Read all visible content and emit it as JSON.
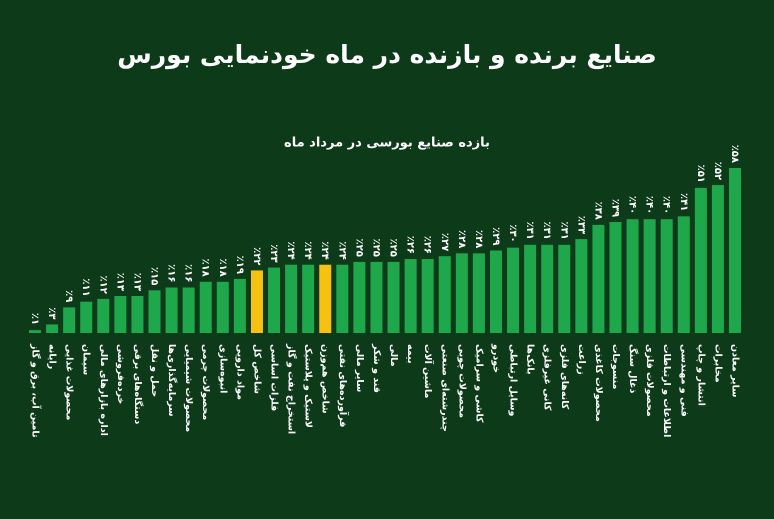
{
  "chart_data": {
    "type": "bar",
    "title": "صنایع برنده و بازنده در ماه خودنمایی بورس",
    "subtitle": "بازده صنایع بورسی در مرداد ماه",
    "categories": [
      "تامین آب، برق و گاز",
      "رایانه",
      "محصولات غذایی",
      "سیمان",
      "اداره بازارهای مالی",
      "خرده‌فروشی",
      "دستگاه‌های برقی",
      "حمل و نقل",
      "سرمایه‌گذاری‌ها",
      "محصولات شیمیایی",
      "محصولات چرمی",
      "انبوه‌سازی",
      "مواد دارویی",
      "شاخص کل",
      "فلزات اساسی",
      "استخراج نفت و گاز",
      "لاستیک و پلاستیک",
      "شاخص هم‌وزن",
      "فرآورده‌های نفتی",
      "سایر مالی",
      "قند و شکر",
      "مالی",
      "بیمه",
      "ماشین آلات",
      "چندرشته‌ای صنعتی",
      "محصولات چوبی",
      "کاشی و سرامیک",
      "خودرو",
      "وسایل ارتباطی",
      "بانک‌ها",
      "کانی غیرفلزی",
      "کانه‌های فلزی",
      "زراعت",
      "محصولات کاغذی",
      "منسوجات",
      "ذغال سنگ",
      "محصولات فلزی",
      "اطلاعات و ارتباطات",
      "فنی و مهندسی",
      "انتشار و چاپ",
      "مخابرات",
      "سایر معادن"
    ],
    "values": [
      1,
      3,
      9,
      11,
      12,
      13,
      13,
      15,
      16,
      16,
      18,
      18,
      19,
      22,
      23,
      24,
      24,
      24,
      24,
      25,
      25,
      25,
      26,
      26,
      27,
      28,
      28,
      29,
      30,
      31,
      31,
      31,
      33,
      38,
      39,
      40,
      40,
      40,
      41,
      51,
      52,
      58
    ],
    "value_labels": [
      "٪۱",
      "٪۳",
      "٪۹",
      "٪۱۱",
      "٪۱۲",
      "٪۱۳",
      "٪۱۳",
      "٪۱۵",
      "٪۱۶",
      "٪۱۶",
      "٪۱۸",
      "٪۱۸",
      "٪۱۹",
      "٪۲۲",
      "٪۲۳",
      "٪۲۴",
      "٪۲۴",
      "٪۲۴",
      "٪۲۴",
      "٪۲۵",
      "٪۲۵",
      "٪۲۵",
      "٪۲۶",
      "٪۲۶",
      "٪۲۷",
      "٪۲۸",
      "٪۲۸",
      "٪۲۹",
      "٪۳۰",
      "٪۳۱",
      "٪۳۱",
      "٪۳۱",
      "٪۳۳",
      "٪۳۸",
      "٪۳۹",
      "٪۴۰",
      "٪۴۰",
      "٪۴۰",
      "٪۴۱",
      "٪۵۱",
      "٪۵۲",
      "٪۵۸"
    ],
    "colors": [
      "#1ea84b",
      "#1ea84b",
      "#1ea84b",
      "#1ea84b",
      "#1ea84b",
      "#1ea84b",
      "#1ea84b",
      "#1ea84b",
      "#1ea84b",
      "#1ea84b",
      "#1ea84b",
      "#1ea84b",
      "#1ea84b",
      "#f5c211",
      "#1ea84b",
      "#1ea84b",
      "#1ea84b",
      "#f5c211",
      "#1ea84b",
      "#1ea84b",
      "#1ea84b",
      "#1ea84b",
      "#1ea84b",
      "#1ea84b",
      "#1ea84b",
      "#1ea84b",
      "#1ea84b",
      "#1ea84b",
      "#1ea84b",
      "#1ea84b",
      "#1ea84b",
      "#1ea84b",
      "#1ea84b",
      "#1ea84b",
      "#1ea84b",
      "#1ea84b",
      "#1ea84b",
      "#1ea84b",
      "#1ea84b",
      "#1ea84b",
      "#1ea84b",
      "#1ea84b"
    ]
  }
}
